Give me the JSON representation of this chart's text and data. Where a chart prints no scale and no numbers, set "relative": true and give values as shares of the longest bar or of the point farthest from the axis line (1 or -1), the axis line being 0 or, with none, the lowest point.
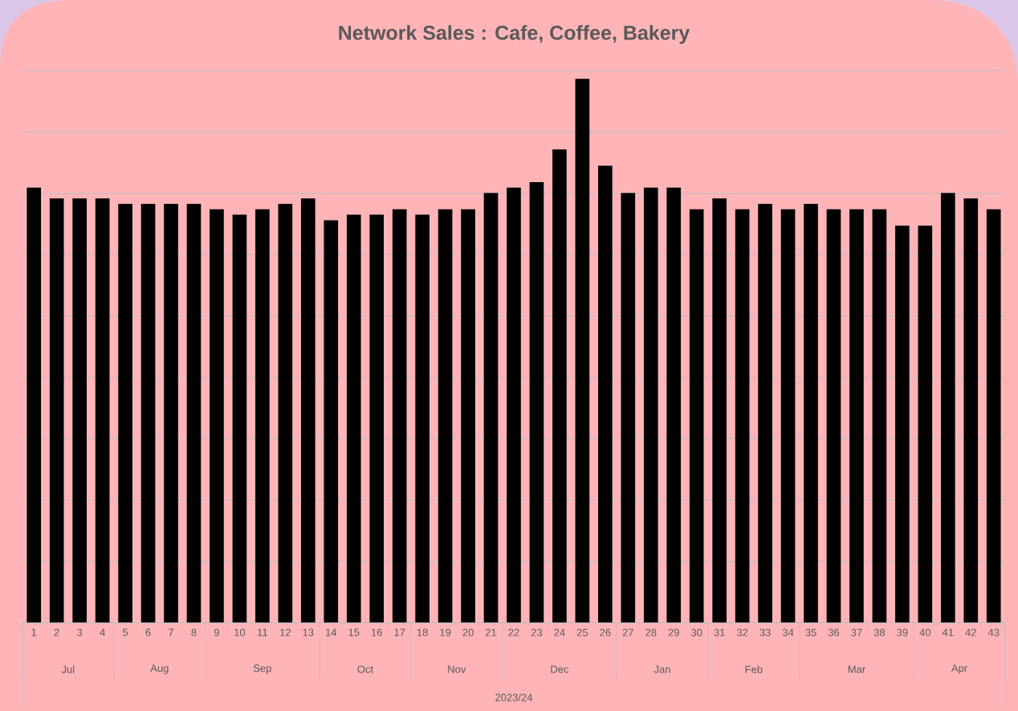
{
  "chart_data": {
    "type": "bar",
    "title": "Network Sales : Cafe, Coffee, Bakery",
    "categories": [
      "1",
      "2",
      "3",
      "4",
      "5",
      "6",
      "7",
      "8",
      "9",
      "10",
      "11",
      "12",
      "13",
      "14",
      "15",
      "16",
      "17",
      "18",
      "19",
      "20",
      "21",
      "22",
      "23",
      "24",
      "25",
      "26",
      "27",
      "28",
      "29",
      "30",
      "31",
      "32",
      "33",
      "34",
      "35",
      "36",
      "37",
      "38",
      "39",
      "40",
      "41",
      "42",
      "43"
    ],
    "values": [
      0.8,
      0.78,
      0.78,
      0.78,
      0.77,
      0.77,
      0.77,
      0.77,
      0.76,
      0.75,
      0.76,
      0.77,
      0.78,
      0.74,
      0.75,
      0.75,
      0.76,
      0.75,
      0.76,
      0.76,
      0.79,
      0.8,
      0.81,
      0.87,
      1,
      0.84,
      0.79,
      0.8,
      0.8,
      0.76,
      0.78,
      0.76,
      0.77,
      0.76,
      0.77,
      0.76,
      0.76,
      0.76,
      0.73,
      0.73,
      0.79,
      0.78,
      0.76
    ],
    "color": "#000000",
    "relative": true,
    "grid": "y",
    "annotations": [
      "Jul",
      "Aug",
      "Sep",
      "Oct",
      "Nov",
      "Dec",
      "Jan",
      "Feb",
      "Mar",
      "Apr",
      "2023/24"
    ]
  }
}
